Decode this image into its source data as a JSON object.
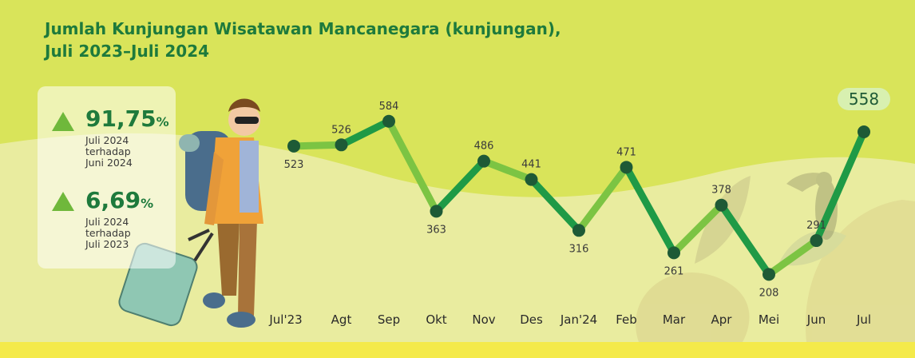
{
  "title": {
    "line1": "Jumlah Kunjungan Wisatawan Mancanegara (kunjungan),",
    "line2": "Juli 2023–Juli 2024"
  },
  "stats": [
    {
      "value": "91,75",
      "unit": "%",
      "desc": [
        "Juli 2024",
        "terhadap",
        "Juni 2024"
      ],
      "trend": "up"
    },
    {
      "value": "6,69",
      "unit": "%",
      "desc": [
        "Juli 2024",
        "terhadap",
        "Juli 2023"
      ],
      "trend": "up"
    }
  ],
  "colors": {
    "background": "#f4ea4a",
    "title": "#1e7a3c",
    "line_dark": "#1f9a46",
    "line_light": "#7cc443",
    "marker": "#1e5a36",
    "up_arrow": "#6fb83b",
    "highlight_pill": "#d8f0b0"
  },
  "chart_data": {
    "type": "line",
    "title": "Jumlah Kunjungan Wisatawan Mancanegara (kunjungan), Juli 2023–Juli 2024",
    "categories": [
      "Jul'23",
      "Agt",
      "Sep",
      "Okt",
      "Nov",
      "Des",
      "Jan'24",
      "Feb",
      "Mar",
      "Apr",
      "Mei",
      "Jun",
      "Jul"
    ],
    "values": [
      523,
      526,
      584,
      363,
      486,
      441,
      316,
      471,
      261,
      378,
      208,
      291,
      558
    ],
    "data_labels": [
      "523",
      "526",
      "584",
      "363",
      "486",
      "441",
      "316",
      "471",
      "261",
      "378",
      "208",
      "291",
      "558"
    ],
    "highlighted_index": 12,
    "xlabel": "",
    "ylabel": "",
    "ylim": [
      200,
      590
    ],
    "grid": false,
    "legend": "none"
  }
}
